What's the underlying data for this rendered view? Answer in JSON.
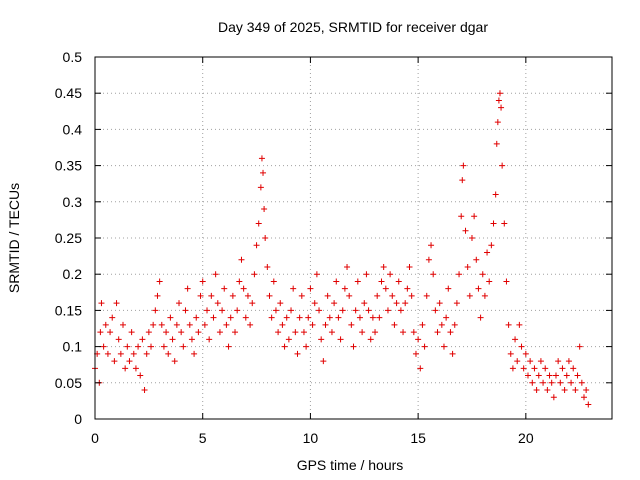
{
  "chart_data": {
    "type": "scatter",
    "title": "Day 349 of 2025, SRMTID for receiver dgar",
    "xlabel": "GPS time / hours",
    "ylabel": "SRMTID / TECUs",
    "xlim": [
      0,
      24
    ],
    "ylim": [
      0,
      0.5
    ],
    "grid": true,
    "marker": "+",
    "marker_color": "#e00000",
    "x_ticks": [
      {
        "value": 0,
        "label": "0"
      },
      {
        "value": 5,
        "label": "5"
      },
      {
        "value": 10,
        "label": "10"
      },
      {
        "value": 15,
        "label": "15"
      },
      {
        "value": 20,
        "label": "20"
      }
    ],
    "y_ticks": [
      {
        "value": 0,
        "label": "0"
      },
      {
        "value": 0.05,
        "label": "0.05"
      },
      {
        "value": 0.1,
        "label": "0.1"
      },
      {
        "value": 0.15,
        "label": "0.15"
      },
      {
        "value": 0.2,
        "label": "0.2"
      },
      {
        "value": 0.25,
        "label": "0.25"
      },
      {
        "value": 0.3,
        "label": "0.3"
      },
      {
        "value": 0.35,
        "label": "0.35"
      },
      {
        "value": 0.4,
        "label": "0.4"
      },
      {
        "value": 0.45,
        "label": "0.45"
      },
      {
        "value": 0.5,
        "label": "0.5"
      }
    ],
    "series": [
      {
        "name": "SRMTID",
        "points": [
          [
            0.0,
            0.07
          ],
          [
            0.1,
            0.09
          ],
          [
            0.2,
            0.05
          ],
          [
            0.25,
            0.12
          ],
          [
            0.3,
            0.16
          ],
          [
            0.4,
            0.1
          ],
          [
            0.5,
            0.13
          ],
          [
            0.6,
            0.09
          ],
          [
            0.7,
            0.12
          ],
          [
            0.8,
            0.14
          ],
          [
            0.9,
            0.08
          ],
          [
            1.0,
            0.16
          ],
          [
            1.1,
            0.11
          ],
          [
            1.2,
            0.09
          ],
          [
            1.3,
            0.13
          ],
          [
            1.4,
            0.07
          ],
          [
            1.5,
            0.1
          ],
          [
            1.6,
            0.08
          ],
          [
            1.7,
            0.12
          ],
          [
            1.8,
            0.09
          ],
          [
            1.9,
            0.07
          ],
          [
            2.0,
            0.1
          ],
          [
            2.1,
            0.06
          ],
          [
            2.2,
            0.11
          ],
          [
            2.3,
            0.04
          ],
          [
            2.4,
            0.09
          ],
          [
            2.5,
            0.12
          ],
          [
            2.6,
            0.1
          ],
          [
            2.7,
            0.13
          ],
          [
            2.8,
            0.15
          ],
          [
            2.9,
            0.17
          ],
          [
            3.0,
            0.19
          ],
          [
            3.1,
            0.13
          ],
          [
            3.2,
            0.1
          ],
          [
            3.3,
            0.12
          ],
          [
            3.4,
            0.09
          ],
          [
            3.5,
            0.14
          ],
          [
            3.6,
            0.11
          ],
          [
            3.7,
            0.08
          ],
          [
            3.8,
            0.13
          ],
          [
            3.9,
            0.16
          ],
          [
            4.0,
            0.12
          ],
          [
            4.1,
            0.1
          ],
          [
            4.2,
            0.15
          ],
          [
            4.3,
            0.18
          ],
          [
            4.4,
            0.13
          ],
          [
            4.5,
            0.11
          ],
          [
            4.6,
            0.09
          ],
          [
            4.7,
            0.14
          ],
          [
            4.8,
            0.12
          ],
          [
            4.9,
            0.17
          ],
          [
            5.0,
            0.19
          ],
          [
            5.1,
            0.13
          ],
          [
            5.2,
            0.15
          ],
          [
            5.3,
            0.11
          ],
          [
            5.4,
            0.17
          ],
          [
            5.5,
            0.14
          ],
          [
            5.6,
            0.2
          ],
          [
            5.7,
            0.16
          ],
          [
            5.8,
            0.12
          ],
          [
            5.9,
            0.15
          ],
          [
            6.0,
            0.18
          ],
          [
            6.1,
            0.13
          ],
          [
            6.2,
            0.1
          ],
          [
            6.3,
            0.14
          ],
          [
            6.4,
            0.17
          ],
          [
            6.5,
            0.12
          ],
          [
            6.6,
            0.15
          ],
          [
            6.7,
            0.19
          ],
          [
            6.8,
            0.22
          ],
          [
            6.9,
            0.18
          ],
          [
            7.0,
            0.14
          ],
          [
            7.1,
            0.17
          ],
          [
            7.2,
            0.13
          ],
          [
            7.3,
            0.16
          ],
          [
            7.4,
            0.2
          ],
          [
            7.5,
            0.24
          ],
          [
            7.6,
            0.27
          ],
          [
            7.7,
            0.32
          ],
          [
            7.75,
            0.36
          ],
          [
            7.8,
            0.34
          ],
          [
            7.85,
            0.29
          ],
          [
            7.9,
            0.25
          ],
          [
            8.0,
            0.21
          ],
          [
            8.1,
            0.17
          ],
          [
            8.2,
            0.14
          ],
          [
            8.3,
            0.19
          ],
          [
            8.4,
            0.15
          ],
          [
            8.5,
            0.12
          ],
          [
            8.6,
            0.16
          ],
          [
            8.7,
            0.13
          ],
          [
            8.8,
            0.1
          ],
          [
            8.9,
            0.14
          ],
          [
            9.0,
            0.11
          ],
          [
            9.1,
            0.15
          ],
          [
            9.2,
            0.18
          ],
          [
            9.3,
            0.12
          ],
          [
            9.4,
            0.09
          ],
          [
            9.5,
            0.14
          ],
          [
            9.6,
            0.17
          ],
          [
            9.7,
            0.12
          ],
          [
            9.8,
            0.1
          ],
          [
            9.9,
            0.14
          ],
          [
            10.0,
            0.18
          ],
          [
            10.1,
            0.13
          ],
          [
            10.2,
            0.16
          ],
          [
            10.3,
            0.2
          ],
          [
            10.4,
            0.15
          ],
          [
            10.5,
            0.11
          ],
          [
            10.6,
            0.08
          ],
          [
            10.7,
            0.13
          ],
          [
            10.8,
            0.17
          ],
          [
            10.9,
            0.14
          ],
          [
            11.0,
            0.12
          ],
          [
            11.1,
            0.16
          ],
          [
            11.2,
            0.19
          ],
          [
            11.3,
            0.14
          ],
          [
            11.4,
            0.11
          ],
          [
            11.5,
            0.15
          ],
          [
            11.6,
            0.18
          ],
          [
            11.7,
            0.21
          ],
          [
            11.8,
            0.17
          ],
          [
            11.9,
            0.13
          ],
          [
            12.0,
            0.1
          ],
          [
            12.1,
            0.15
          ],
          [
            12.2,
            0.19
          ],
          [
            12.3,
            0.14
          ],
          [
            12.4,
            0.12
          ],
          [
            12.5,
            0.16
          ],
          [
            12.6,
            0.2
          ],
          [
            12.7,
            0.15
          ],
          [
            12.8,
            0.11
          ],
          [
            12.9,
            0.14
          ],
          [
            13.0,
            0.12
          ],
          [
            13.1,
            0.17
          ],
          [
            13.2,
            0.14
          ],
          [
            13.3,
            0.19
          ],
          [
            13.4,
            0.21
          ],
          [
            13.5,
            0.18
          ],
          [
            13.6,
            0.15
          ],
          [
            13.7,
            0.2
          ],
          [
            13.8,
            0.17
          ],
          [
            13.9,
            0.13
          ],
          [
            14.0,
            0.16
          ],
          [
            14.1,
            0.19
          ],
          [
            14.2,
            0.15
          ],
          [
            14.3,
            0.12
          ],
          [
            14.4,
            0.16
          ],
          [
            14.5,
            0.18
          ],
          [
            14.6,
            0.21
          ],
          [
            14.7,
            0.17
          ],
          [
            14.8,
            0.12
          ],
          [
            14.9,
            0.09
          ],
          [
            15.0,
            0.11
          ],
          [
            15.1,
            0.07
          ],
          [
            15.2,
            0.13
          ],
          [
            15.3,
            0.1
          ],
          [
            15.4,
            0.17
          ],
          [
            15.5,
            0.22
          ],
          [
            15.6,
            0.24
          ],
          [
            15.7,
            0.2
          ],
          [
            15.8,
            0.15
          ],
          [
            15.9,
            0.12
          ],
          [
            16.0,
            0.16
          ],
          [
            16.1,
            0.13
          ],
          [
            16.2,
            0.1
          ],
          [
            16.3,
            0.14
          ],
          [
            16.4,
            0.18
          ],
          [
            16.5,
            0.12
          ],
          [
            16.6,
            0.09
          ],
          [
            16.7,
            0.13
          ],
          [
            16.8,
            0.16
          ],
          [
            16.9,
            0.2
          ],
          [
            17.0,
            0.28
          ],
          [
            17.05,
            0.33
          ],
          [
            17.1,
            0.35
          ],
          [
            17.2,
            0.26
          ],
          [
            17.3,
            0.21
          ],
          [
            17.4,
            0.17
          ],
          [
            17.5,
            0.25
          ],
          [
            17.6,
            0.28
          ],
          [
            17.7,
            0.22
          ],
          [
            17.8,
            0.18
          ],
          [
            17.9,
            0.14
          ],
          [
            18.0,
            0.2
          ],
          [
            18.1,
            0.17
          ],
          [
            18.2,
            0.23
          ],
          [
            18.3,
            0.19
          ],
          [
            18.4,
            0.24
          ],
          [
            18.5,
            0.27
          ],
          [
            18.6,
            0.31
          ],
          [
            18.65,
            0.38
          ],
          [
            18.7,
            0.41
          ],
          [
            18.75,
            0.44
          ],
          [
            18.8,
            0.45
          ],
          [
            18.85,
            0.43
          ],
          [
            18.9,
            0.35
          ],
          [
            19.0,
            0.27
          ],
          [
            19.1,
            0.19
          ],
          [
            19.2,
            0.13
          ],
          [
            19.3,
            0.09
          ],
          [
            19.4,
            0.07
          ],
          [
            19.5,
            0.11
          ],
          [
            19.6,
            0.08
          ],
          [
            19.7,
            0.13
          ],
          [
            19.8,
            0.1
          ],
          [
            19.9,
            0.07
          ],
          [
            20.0,
            0.09
          ],
          [
            20.1,
            0.06
          ],
          [
            20.2,
            0.08
          ],
          [
            20.3,
            0.05
          ],
          [
            20.4,
            0.07
          ],
          [
            20.5,
            0.04
          ],
          [
            20.6,
            0.06
          ],
          [
            20.7,
            0.08
          ],
          [
            20.8,
            0.05
          ],
          [
            20.9,
            0.07
          ],
          [
            21.0,
            0.04
          ],
          [
            21.1,
            0.06
          ],
          [
            21.2,
            0.05
          ],
          [
            21.3,
            0.03
          ],
          [
            21.4,
            0.06
          ],
          [
            21.5,
            0.08
          ],
          [
            21.6,
            0.05
          ],
          [
            21.7,
            0.07
          ],
          [
            21.8,
            0.04
          ],
          [
            21.9,
            0.06
          ],
          [
            22.0,
            0.08
          ],
          [
            22.1,
            0.05
          ],
          [
            22.2,
            0.07
          ],
          [
            22.3,
            0.04
          ],
          [
            22.4,
            0.06
          ],
          [
            22.5,
            0.1
          ],
          [
            22.6,
            0.05
          ],
          [
            22.7,
            0.03
          ],
          [
            22.8,
            0.04
          ],
          [
            22.9,
            0.02
          ]
        ]
      }
    ]
  }
}
